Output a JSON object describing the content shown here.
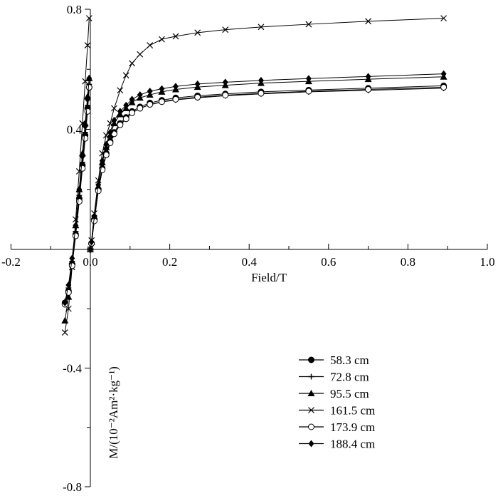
{
  "chart_data": {
    "type": "line",
    "xlabel": "Field/T",
    "ylabel": "M/(10⁻²Am²·kg⁻¹)",
    "xlim": [
      -0.2,
      1.0
    ],
    "ylim": [
      -0.8,
      0.8
    ],
    "x_ticks": [
      -0.2,
      0.0,
      0.2,
      0.4,
      0.6,
      0.8,
      1.0
    ],
    "x_tick_labels": [
      "-0.2",
      "0.0",
      "0.2",
      "0.4",
      "0.6",
      "0.8",
      "1.0"
    ],
    "y_ticks": [
      -0.8,
      -0.4,
      0.4,
      0.8
    ],
    "y_tick_labels": [
      "-0.8",
      "-0.4",
      "0.4",
      "0.8"
    ],
    "grid": false,
    "legend_position": "bottom-right",
    "series": [
      {
        "name": "58.3 cm",
        "marker": "filled-circle",
        "x": [
          -0.064,
          -0.055,
          -0.046,
          -0.037,
          -0.028,
          -0.02,
          -0.013,
          -0.007,
          -0.003,
          0.0,
          0.003,
          0.01,
          0.02,
          0.03,
          0.04,
          0.05,
          0.06,
          0.075,
          0.09,
          0.105,
          0.125,
          0.15,
          0.18,
          0.215,
          0.27,
          0.34,
          0.43,
          0.55,
          0.7,
          0.89
        ],
        "y": [
          -0.18,
          -0.14,
          -0.05,
          0.05,
          0.17,
          0.28,
          0.38,
          0.47,
          0.54,
          0.0,
          0.02,
          0.1,
          0.2,
          0.27,
          0.32,
          0.36,
          0.39,
          0.42,
          0.44,
          0.46,
          0.475,
          0.488,
          0.497,
          0.505,
          0.512,
          0.518,
          0.525,
          0.531,
          0.537,
          0.545
        ]
      },
      {
        "name": "72.8 cm",
        "marker": "plus",
        "x": [
          -0.064,
          -0.055,
          -0.046,
          -0.037,
          -0.028,
          -0.02,
          -0.013,
          -0.007,
          -0.003,
          0.0,
          0.003,
          0.01,
          0.02,
          0.03,
          0.04,
          0.05,
          0.06,
          0.075,
          0.09,
          0.105,
          0.125,
          0.15,
          0.18,
          0.215,
          0.27,
          0.34,
          0.43,
          0.55,
          0.7,
          0.89
        ],
        "y": [
          -0.175,
          -0.13,
          -0.04,
          0.06,
          0.18,
          0.29,
          0.39,
          0.48,
          0.55,
          0.0,
          0.02,
          0.1,
          0.195,
          0.265,
          0.315,
          0.355,
          0.385,
          0.415,
          0.435,
          0.455,
          0.47,
          0.482,
          0.491,
          0.498,
          0.505,
          0.512,
          0.518,
          0.525,
          0.53,
          0.537
        ]
      },
      {
        "name": "95.5 cm",
        "marker": "filled-triangle",
        "x": [
          -0.064,
          -0.055,
          -0.046,
          -0.037,
          -0.028,
          -0.02,
          -0.013,
          -0.007,
          -0.003,
          0.0,
          0.003,
          0.01,
          0.02,
          0.03,
          0.04,
          0.05,
          0.06,
          0.075,
          0.09,
          0.105,
          0.125,
          0.15,
          0.18,
          0.215,
          0.27,
          0.34,
          0.43,
          0.55,
          0.7,
          0.89
        ],
        "y": [
          -0.24,
          -0.16,
          -0.04,
          0.08,
          0.2,
          0.32,
          0.42,
          0.51,
          0.57,
          0.0,
          0.025,
          0.11,
          0.21,
          0.29,
          0.34,
          0.38,
          0.42,
          0.45,
          0.47,
          0.49,
          0.505,
          0.515,
          0.525,
          0.533,
          0.541,
          0.547,
          0.554,
          0.56,
          0.567,
          0.575
        ]
      },
      {
        "name": "161.5 cm",
        "marker": "x",
        "x": [
          -0.064,
          -0.055,
          -0.046,
          -0.037,
          -0.028,
          -0.02,
          -0.013,
          -0.007,
          -0.003,
          0.0,
          0.003,
          0.01,
          0.02,
          0.03,
          0.04,
          0.05,
          0.06,
          0.075,
          0.09,
          0.105,
          0.125,
          0.15,
          0.18,
          0.215,
          0.27,
          0.34,
          0.43,
          0.55,
          0.7,
          0.89
        ],
        "y": [
          -0.28,
          -0.2,
          -0.06,
          0.1,
          0.26,
          0.42,
          0.56,
          0.68,
          0.77,
          0.0,
          0.03,
          0.12,
          0.23,
          0.32,
          0.38,
          0.42,
          0.47,
          0.53,
          0.58,
          0.62,
          0.65,
          0.68,
          0.7,
          0.71,
          0.722,
          0.732,
          0.741,
          0.75,
          0.76,
          0.77
        ]
      },
      {
        "name": "173.9 cm",
        "marker": "open-circle",
        "x": [
          -0.064,
          -0.055,
          -0.046,
          -0.037,
          -0.028,
          -0.02,
          -0.013,
          -0.007,
          -0.003,
          0.0,
          0.003,
          0.01,
          0.02,
          0.03,
          0.04,
          0.05,
          0.06,
          0.075,
          0.09,
          0.105,
          0.125,
          0.15,
          0.18,
          0.215,
          0.27,
          0.34,
          0.43,
          0.55,
          0.7,
          0.89
        ],
        "y": [
          -0.185,
          -0.145,
          -0.055,
          0.045,
          0.16,
          0.27,
          0.37,
          0.46,
          0.54,
          0.0,
          0.02,
          0.095,
          0.195,
          0.265,
          0.315,
          0.355,
          0.385,
          0.415,
          0.435,
          0.455,
          0.47,
          0.483,
          0.492,
          0.5,
          0.507,
          0.514,
          0.52,
          0.527,
          0.533,
          0.54
        ]
      },
      {
        "name": "188.4 cm",
        "marker": "filled-diamond",
        "x": [
          -0.064,
          -0.055,
          -0.046,
          -0.037,
          -0.028,
          -0.02,
          -0.013,
          -0.007,
          -0.003,
          0.0,
          0.003,
          0.01,
          0.02,
          0.03,
          0.04,
          0.05,
          0.06,
          0.075,
          0.09,
          0.105,
          0.125,
          0.15,
          0.18,
          0.215,
          0.27,
          0.34,
          0.43,
          0.55,
          0.7,
          0.89
        ],
        "y": [
          -0.18,
          -0.12,
          -0.03,
          0.08,
          0.2,
          0.31,
          0.41,
          0.5,
          0.57,
          0.0,
          0.025,
          0.11,
          0.215,
          0.295,
          0.35,
          0.39,
          0.43,
          0.46,
          0.48,
          0.5,
          0.515,
          0.527,
          0.535,
          0.543,
          0.551,
          0.557,
          0.563,
          0.569,
          0.576,
          0.585
        ]
      }
    ]
  },
  "colors": {
    "line": "#000000",
    "background": "#ffffff"
  }
}
